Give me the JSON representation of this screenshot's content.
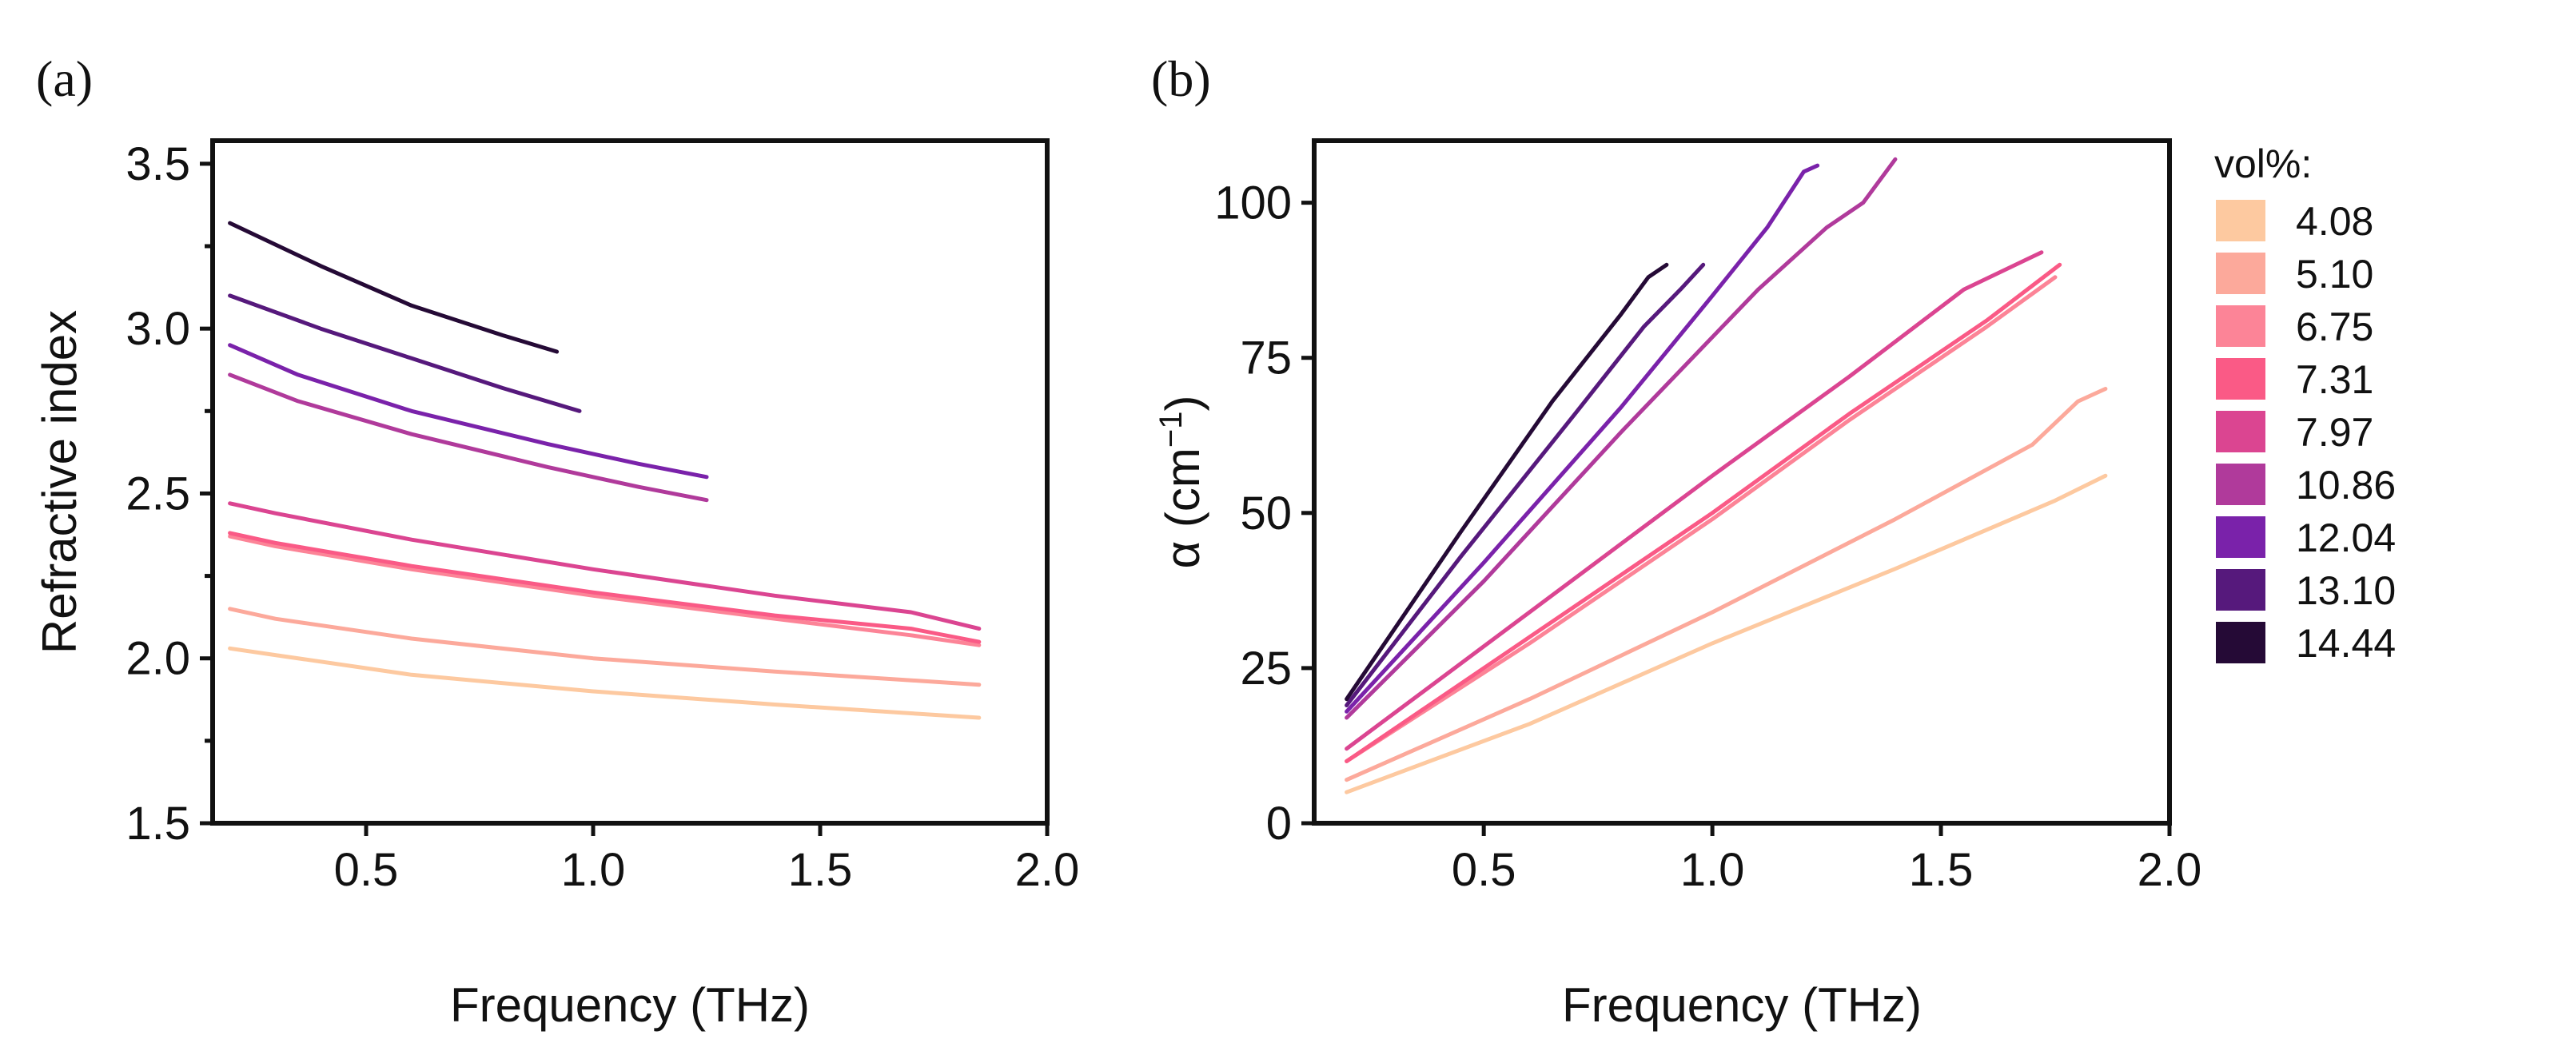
{
  "chart_data": [
    {
      "type": "line",
      "panel_label": "(a)",
      "xlabel": "Frequency (THz)",
      "ylabel": "Refractive index",
      "xlim": [
        0.162,
        2.0
      ],
      "ylim": [
        1.5,
        3.57
      ],
      "xticks": [
        "0.5",
        "1.0",
        "1.5",
        "2.0"
      ],
      "xtick_values": [
        0.5,
        1.0,
        1.5,
        2.0
      ],
      "yticks": [
        "1.5",
        "2.0",
        "2.5",
        "3.0",
        "3.5"
      ],
      "ytick_values": [
        1.5,
        2.0,
        2.5,
        3.0,
        3.5
      ],
      "yminor": [
        1.75,
        2.25,
        2.75,
        3.25
      ],
      "grid": false,
      "series": [
        {
          "name": "4.08",
          "x": [
            0.2,
            0.3,
            0.6,
            1.0,
            1.4,
            1.85
          ],
          "y": [
            2.03,
            2.01,
            1.95,
            1.9,
            1.86,
            1.82
          ]
        },
        {
          "name": "5.10",
          "x": [
            0.2,
            0.3,
            0.6,
            1.0,
            1.4,
            1.85
          ],
          "y": [
            2.15,
            2.12,
            2.06,
            2.0,
            1.96,
            1.92
          ]
        },
        {
          "name": "6.75",
          "x": [
            0.2,
            0.3,
            0.6,
            1.0,
            1.4,
            1.7,
            1.85
          ],
          "y": [
            2.37,
            2.34,
            2.27,
            2.19,
            2.12,
            2.07,
            2.04
          ]
        },
        {
          "name": "7.31",
          "x": [
            0.2,
            0.3,
            0.6,
            1.0,
            1.4,
            1.7,
            1.85
          ],
          "y": [
            2.38,
            2.35,
            2.28,
            2.2,
            2.13,
            2.09,
            2.05
          ]
        },
        {
          "name": "7.97",
          "x": [
            0.2,
            0.3,
            0.6,
            1.0,
            1.4,
            1.7,
            1.85
          ],
          "y": [
            2.47,
            2.44,
            2.36,
            2.27,
            2.19,
            2.14,
            2.09
          ]
        },
        {
          "name": "10.86",
          "x": [
            0.2,
            0.35,
            0.6,
            0.9,
            1.1,
            1.25
          ],
          "y": [
            2.86,
            2.78,
            2.68,
            2.58,
            2.52,
            2.48
          ]
        },
        {
          "name": "12.04",
          "x": [
            0.2,
            0.35,
            0.6,
            0.9,
            1.1,
            1.25
          ],
          "y": [
            2.95,
            2.86,
            2.75,
            2.65,
            2.59,
            2.55
          ]
        },
        {
          "name": "13.10",
          "x": [
            0.2,
            0.4,
            0.6,
            0.8,
            0.97
          ],
          "y": [
            3.1,
            3.0,
            2.91,
            2.82,
            2.75
          ]
        },
        {
          "name": "14.44",
          "x": [
            0.2,
            0.4,
            0.6,
            0.8,
            0.92
          ],
          "y": [
            3.32,
            3.19,
            3.07,
            2.98,
            2.93
          ]
        }
      ]
    },
    {
      "type": "line",
      "panel_label": "(b)",
      "xlabel": "Frequency (THz)",
      "ylabel": "α (cm",
      "ylabel_sup": "−1",
      "ylabel_end": ")",
      "xlim": [
        0.129,
        2.0
      ],
      "ylim": [
        0,
        110
      ],
      "xticks": [
        "0.5",
        "1.0",
        "1.5",
        "2.0"
      ],
      "xtick_values": [
        0.5,
        1.0,
        1.5,
        2.0
      ],
      "yticks": [
        "0",
        "25",
        "50",
        "75",
        "100"
      ],
      "ytick_values": [
        0,
        25,
        50,
        75,
        100
      ],
      "grid": false,
      "legend": {
        "title": "vol%:",
        "placement": "right"
      },
      "series": [
        {
          "name": "4.08",
          "x": [
            0.2,
            0.6,
            1.0,
            1.4,
            1.75,
            1.86
          ],
          "y": [
            5,
            16,
            29,
            41,
            52,
            56
          ]
        },
        {
          "name": "5.10",
          "x": [
            0.2,
            0.6,
            1.0,
            1.4,
            1.7,
            1.8,
            1.86
          ],
          "y": [
            7,
            20,
            34,
            49,
            61,
            68,
            70
          ]
        },
        {
          "name": "6.75",
          "x": [
            0.2,
            0.6,
            1.0,
            1.3,
            1.6,
            1.75
          ],
          "y": [
            10,
            29,
            49,
            65,
            80,
            88
          ]
        },
        {
          "name": "7.31",
          "x": [
            0.2,
            0.6,
            1.0,
            1.3,
            1.6,
            1.76
          ],
          "y": [
            10,
            30,
            50,
            66,
            81,
            90
          ]
        },
        {
          "name": "7.97",
          "x": [
            0.2,
            0.6,
            1.0,
            1.3,
            1.55,
            1.72
          ],
          "y": [
            12,
            34,
            56,
            72,
            86,
            92
          ]
        },
        {
          "name": "10.86",
          "x": [
            0.2,
            0.5,
            0.8,
            1.1,
            1.25,
            1.33,
            1.4
          ],
          "y": [
            17,
            39,
            63,
            86,
            96,
            100,
            107
          ]
        },
        {
          "name": "12.04",
          "x": [
            0.2,
            0.5,
            0.8,
            1.0,
            1.12,
            1.2,
            1.23
          ],
          "y": [
            18,
            42,
            67,
            85,
            96,
            105,
            106
          ]
        },
        {
          "name": "13.10",
          "x": [
            0.2,
            0.45,
            0.7,
            0.85,
            0.93,
            0.98
          ],
          "y": [
            19,
            43,
            66,
            80,
            86,
            90
          ]
        },
        {
          "name": "14.44",
          "x": [
            0.2,
            0.45,
            0.65,
            0.8,
            0.86,
            0.9
          ],
          "y": [
            20,
            47,
            68,
            82,
            88,
            90
          ]
        }
      ],
      "colors": [
        "#fdc9a0",
        "#fca99b",
        "#fc8497",
        "#fa5a86",
        "#db4591",
        "#b03a9b",
        "#7a22aa",
        "#56197c",
        "#250a36"
      ]
    }
  ]
}
